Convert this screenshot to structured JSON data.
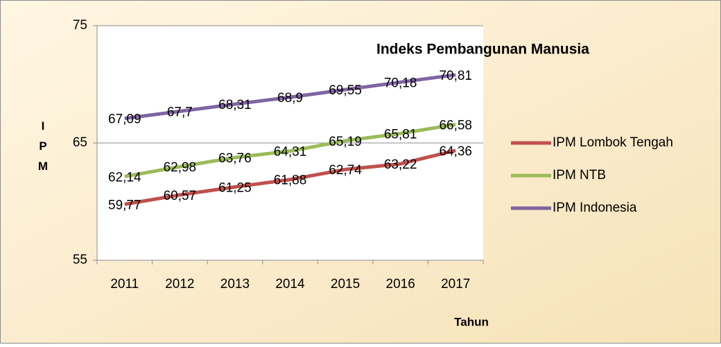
{
  "chart_data": {
    "type": "line",
    "title": "Indeks Pembangunan Manusia",
    "x_label": "Tahun",
    "y_label": "IPM",
    "categories": [
      "2011",
      "2012",
      "2013",
      "2014",
      "2015",
      "2016",
      "2017"
    ],
    "series": [
      {
        "name": "IPM Lombok Tengah",
        "color": "#c0504d",
        "values": [
          59.77,
          60.57,
          61.25,
          61.88,
          62.74,
          63.22,
          64.36
        ],
        "value_labels": [
          "59,77",
          "60,57",
          "61,25",
          "61,88",
          "62,74",
          "63,22",
          "64,36"
        ]
      },
      {
        "name": "IPM NTB",
        "color": "#9bbb59",
        "values": [
          62.14,
          62.98,
          63.76,
          64.31,
          65.19,
          65.81,
          66.58
        ],
        "value_labels": [
          "62,14",
          "62,98",
          "63,76",
          "64,31",
          "65,19",
          "65,81",
          "66,58"
        ]
      },
      {
        "name": "IPM Indonesia",
        "color": "#8064a2",
        "values": [
          67.09,
          67.7,
          68.31,
          68.9,
          69.55,
          70.18,
          70.81
        ],
        "value_labels": [
          "67,09",
          "67,7",
          "68,31",
          "68,9",
          "69,55",
          "70,18",
          "70,81"
        ]
      }
    ],
    "ylim": [
      55,
      75
    ],
    "yticks": [
      55,
      65,
      75
    ],
    "grid": true,
    "legend": "right"
  }
}
